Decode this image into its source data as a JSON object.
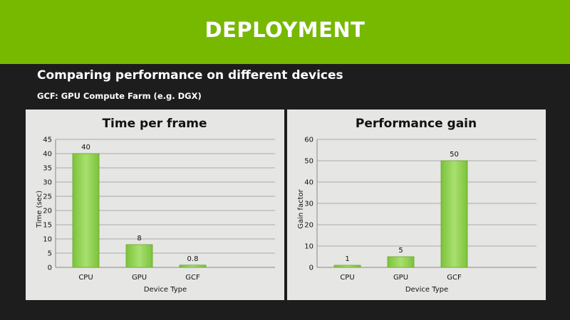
{
  "slide": {
    "title": "DEPLOYMENT",
    "subtitle": "Comparing performance on different devices",
    "note": "GCF: GPU Compute Farm (e.g. DGX)"
  },
  "colors": {
    "banner": "#76b900",
    "background": "#1d1d1d",
    "panel": "#e6e6e4",
    "bar": "#8fd14f"
  },
  "chart_data": [
    {
      "type": "bar",
      "title": "Time per frame",
      "categories": [
        "CPU",
        "GPU",
        "GCF"
      ],
      "values": [
        40,
        8,
        0.8
      ],
      "value_labels": [
        "40",
        "8",
        "0.8"
      ],
      "xlabel": "Device Type",
      "ylabel": "Time (sec)",
      "ylim": [
        0,
        45
      ],
      "yticks": [
        0,
        5,
        10,
        15,
        20,
        25,
        30,
        35,
        40,
        45
      ],
      "grid": true
    },
    {
      "type": "bar",
      "title": "Performance gain",
      "categories": [
        "CPU",
        "GPU",
        "GCF"
      ],
      "values": [
        1,
        5,
        50
      ],
      "value_labels": [
        "1",
        "5",
        "50"
      ],
      "xlabel": "Device Type",
      "ylabel": "Gain factor",
      "ylim": [
        0,
        60
      ],
      "yticks": [
        0,
        10,
        20,
        30,
        40,
        50,
        60
      ],
      "grid": true
    }
  ]
}
